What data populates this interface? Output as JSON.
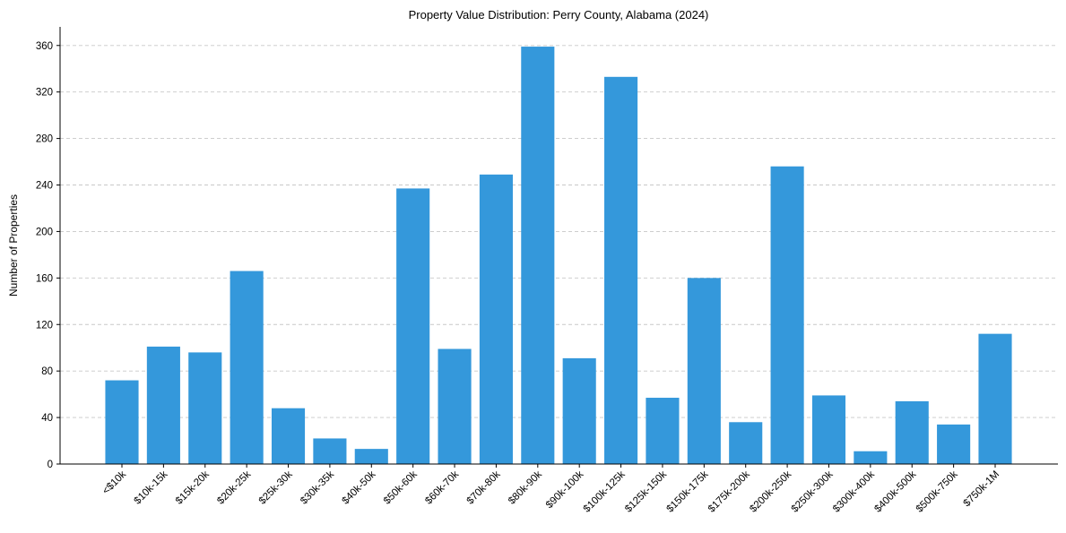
{
  "chart_data": {
    "type": "bar",
    "title": "Property Value Distribution: Perry County, Alabama (2024)",
    "xlabel": "",
    "ylabel": "Number of Properties",
    "ylim": [
      0,
      376
    ],
    "yticks": [
      0,
      40,
      80,
      120,
      160,
      200,
      240,
      280,
      320,
      360
    ],
    "grid": "y-dashed",
    "categories": [
      "<$10k",
      "$10k-15k",
      "$15k-20k",
      "$20k-25k",
      "$25k-30k",
      "$30k-35k",
      "$40k-50k",
      "$50k-60k",
      "$60k-70k",
      "$70k-80k",
      "$80k-90k",
      "$90k-100k",
      "$100k-125k",
      "$125k-150k",
      "$150k-175k",
      "$175k-200k",
      "$200k-250k",
      "$250k-300k",
      "$300k-400k",
      "$400k-500k",
      "$500k-750k",
      "$750k-1M"
    ],
    "values": [
      72,
      101,
      96,
      166,
      48,
      22,
      13,
      237,
      99,
      249,
      359,
      91,
      333,
      57,
      160,
      36,
      256,
      59,
      11,
      54,
      34,
      112
    ],
    "bar_color": "#3498db",
    "xtick_rotation": 45
  }
}
